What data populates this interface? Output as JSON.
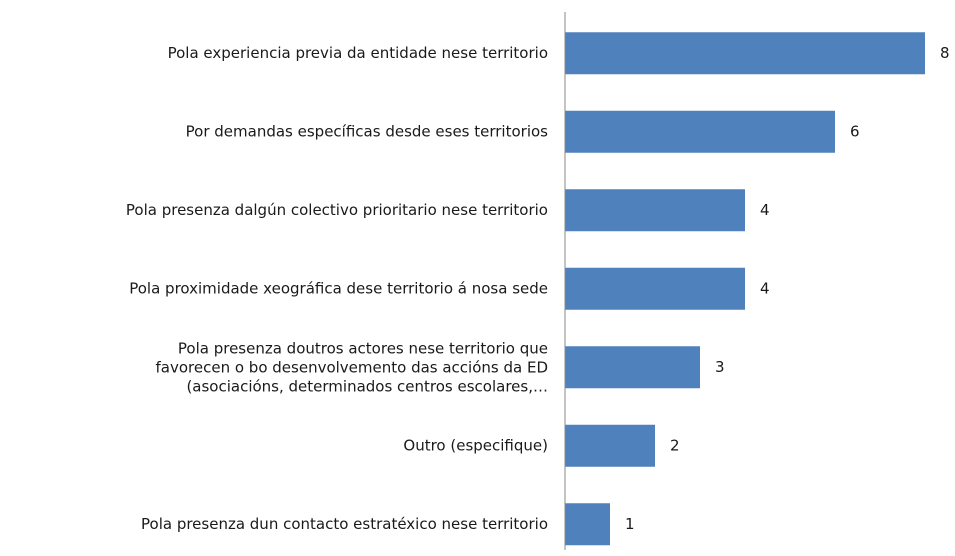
{
  "chart_data": {
    "type": "hbar",
    "categories": [
      "Pola experiencia previa da entidade nese territorio",
      "Por demandas específicas desde eses territorios",
      "Pola presenza dalgún colectivo prioritario nese territorio",
      "Pola proximidade xeográfica dese territorio á nosa sede",
      "Pola presenza doutros actores nese territorio que\nfavorecen o bo desenvolvemento das accións da ED\n(asociacións, determinados centros escolares,…",
      "Outro (especifique)",
      "Pola presenza dun contacto estratéxico nese territorio"
    ],
    "values": [
      8,
      6,
      4,
      4,
      3,
      2,
      1
    ],
    "color": "#4f81bd"
  }
}
